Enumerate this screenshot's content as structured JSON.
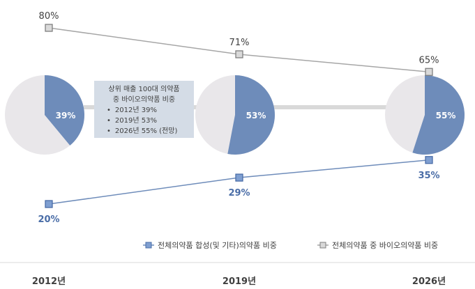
{
  "chart_data": {
    "type": "line",
    "categories": [
      "2012년",
      "2019년",
      "2026년"
    ],
    "series": [
      {
        "name": "전체의약품 합성(및 기타)의약품 비중",
        "values": [
          20,
          29,
          35
        ],
        "labels": [
          "20%",
          "29%",
          "35%"
        ],
        "color": "#6e8cba"
      },
      {
        "name": "전체의약품 중 바이오의약품 비중",
        "values": [
          80,
          71,
          65
        ],
        "labels": [
          "80%",
          "71%",
          "65%"
        ],
        "color": "#a6a6a6"
      }
    ],
    "pies": [
      {
        "category": "2012년",
        "bio": 39,
        "label": "39%"
      },
      {
        "category": "2019년",
        "bio": 53,
        "label": "53%"
      },
      {
        "category": "2026년",
        "bio": 55,
        "label": "55%"
      }
    ],
    "pie_colors": {
      "bio": "#6e8cba",
      "other": "#e9e7ea"
    },
    "callout": {
      "title_line1": "상위 매출 100대 의약품",
      "title_line2": "중 바이오의약품 비중",
      "items": [
        "2012년 39%",
        "2019년 53%",
        "2026년 55% (전망)"
      ]
    },
    "legend_position": "bottom-right"
  }
}
